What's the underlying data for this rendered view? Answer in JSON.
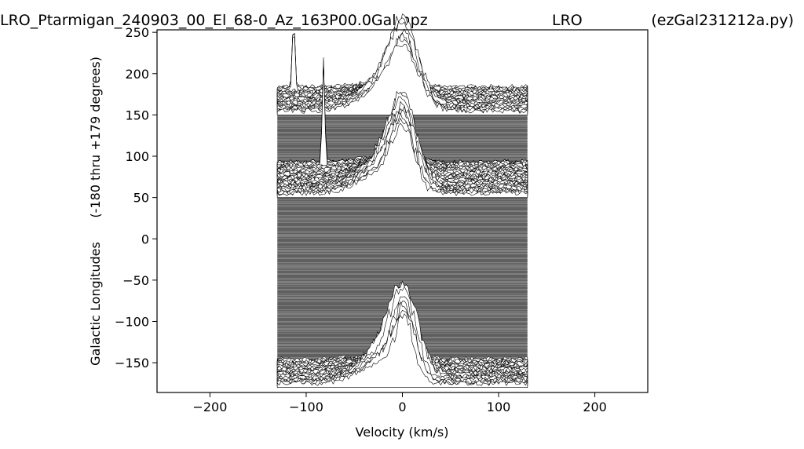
{
  "header": {
    "title_left": "LRO_Ptarmigan_240903_00_El_68-0_Az_163P00.0Gal.npz",
    "title_center": "LRO",
    "title_right": "(ezGal231212a.py)"
  },
  "chart_data": {
    "type": "line",
    "chart_style": "waterfall stacked spectra",
    "xlabel": "Velocity (km/s)",
    "ylabel_left": "Galactic Longitudes",
    "ylabel_right": "(-180 thru +179 degrees)",
    "xlim": [
      -255,
      255
    ],
    "ylim": [
      -186,
      253
    ],
    "x_ticks": [
      -200,
      -100,
      0,
      100,
      200
    ],
    "x_tick_labels": [
      "−200",
      "−100",
      "0",
      "100",
      "200"
    ],
    "y_ticks": [
      -150,
      -100,
      -50,
      0,
      50,
      100,
      150,
      200,
      250
    ],
    "y_tick_labels": [
      "−150",
      "−100",
      "−50",
      "0",
      "50",
      "100",
      "150",
      "200",
      "250"
    ],
    "trace_longitude_range": [
      -180,
      179
    ],
    "trace_velocity_range": [
      -130,
      130
    ],
    "grid": false,
    "line_color": "#000000",
    "fill_color": "#ffffff",
    "feature_groups": [
      {
        "longitudes": [
          150,
          179
        ],
        "peak_velocity": 2,
        "peak_value": 244,
        "line_peaks": [
          {
            "velocity": -113,
            "value": 238
          }
        ]
      },
      {
        "longitudes": [
          50,
          88
        ],
        "peak_velocity": 1,
        "peak_value": 148,
        "line_peaks": [
          {
            "velocity": -82,
            "value": 180
          }
        ]
      },
      {
        "longitudes": [
          -180,
          -150
        ],
        "peak_velocity": 2,
        "peak_value": -83
      }
    ]
  }
}
